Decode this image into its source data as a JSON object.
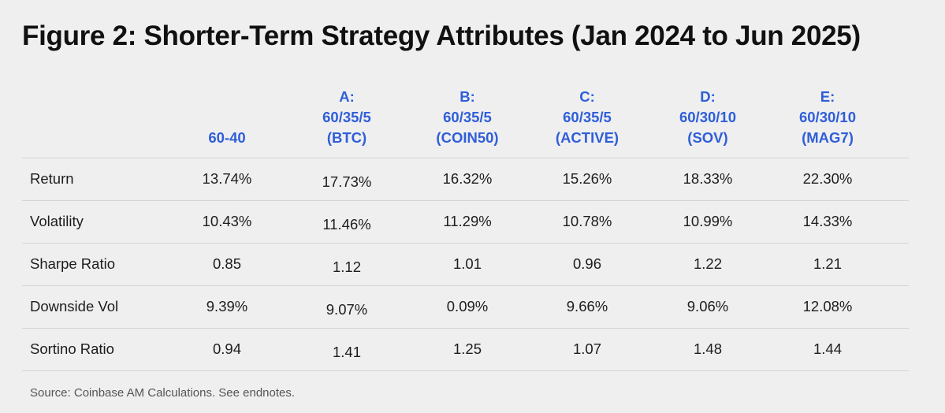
{
  "title": "Figure 2: Shorter-Term Strategy Attributes (Jan 2024 to Jun 2025)",
  "source": "Source: Coinbase AM Calculations. See endnotes.",
  "colors": {
    "background": "#efeff0",
    "header_text": "#2f5ed8",
    "body_text": "#1d1d1d",
    "rule": "#d4d4d7"
  },
  "chart_data": {
    "type": "table",
    "title": "Figure 2: Shorter-Term Strategy Attributes (Jan 2024 to Jun 2025)",
    "columns": [
      {
        "lines": [
          "60-40"
        ]
      },
      {
        "lines": [
          "A:",
          "60/35/5",
          "(BTC)"
        ]
      },
      {
        "lines": [
          "B:",
          "60/35/5",
          "(COIN50)"
        ]
      },
      {
        "lines": [
          "C:",
          "60/35/5",
          "(ACTIVE)"
        ]
      },
      {
        "lines": [
          "D:",
          "60/30/10",
          "(SOV)"
        ]
      },
      {
        "lines": [
          "E:",
          "60/30/10",
          "(MAG7)"
        ]
      }
    ],
    "rows": [
      {
        "label": "Return",
        "values": [
          "13.74%",
          "17.73%",
          "16.32%",
          "15.26%",
          "18.33%",
          "22.30%"
        ]
      },
      {
        "label": "Volatility",
        "values": [
          "10.43%",
          "11.46%",
          "11.29%",
          "10.78%",
          "10.99%",
          "14.33%"
        ]
      },
      {
        "label": "Sharpe Ratio",
        "values": [
          "0.85",
          "1.12",
          "1.01",
          "0.96",
          "1.22",
          "1.21"
        ]
      },
      {
        "label": "Downside Vol",
        "values": [
          "9.39%",
          "9.07%",
          "0.09%",
          "9.66%",
          "9.06%",
          "12.08%"
        ]
      },
      {
        "label": "Sortino Ratio",
        "values": [
          "0.94",
          "1.41",
          "1.25",
          "1.07",
          "1.48",
          "1.44"
        ]
      }
    ],
    "source": "Source: Coinbase AM Calculations. See endnotes."
  }
}
